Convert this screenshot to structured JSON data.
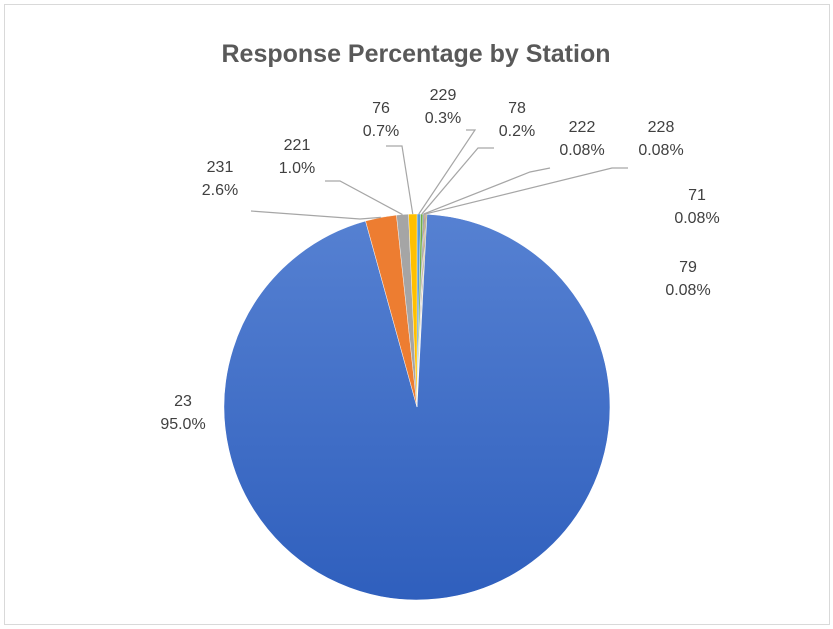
{
  "chart_data": {
    "type": "pie",
    "title": "Response Percentage by Station",
    "slices": [
      {
        "label": "23",
        "pct_text": "95.0%",
        "value": 95.0,
        "color": "#4472C4"
      },
      {
        "label": "231",
        "pct_text": "2.6%",
        "value": 2.6,
        "color": "#ED7D31"
      },
      {
        "label": "221",
        "pct_text": "1.0%",
        "value": 1.0,
        "color": "#A5A5A5"
      },
      {
        "label": "76",
        "pct_text": "0.7%",
        "value": 0.7,
        "color": "#FFC000"
      },
      {
        "label": "229",
        "pct_text": "0.3%",
        "value": 0.3,
        "color": "#5B9BD5"
      },
      {
        "label": "78",
        "pct_text": "0.2%",
        "value": 0.2,
        "color": "#70AD47"
      },
      {
        "label": "222",
        "pct_text": "0.08%",
        "value": 0.08,
        "color": "#264478"
      },
      {
        "label": "228",
        "pct_text": "0.08%",
        "value": 0.08,
        "color": "#9E480E"
      },
      {
        "label": "71",
        "pct_text": "0.08%",
        "value": 0.08,
        "color": "#636363"
      },
      {
        "label": "79",
        "pct_text": "0.08%",
        "value": 0.08,
        "color": "#997300"
      }
    ]
  }
}
